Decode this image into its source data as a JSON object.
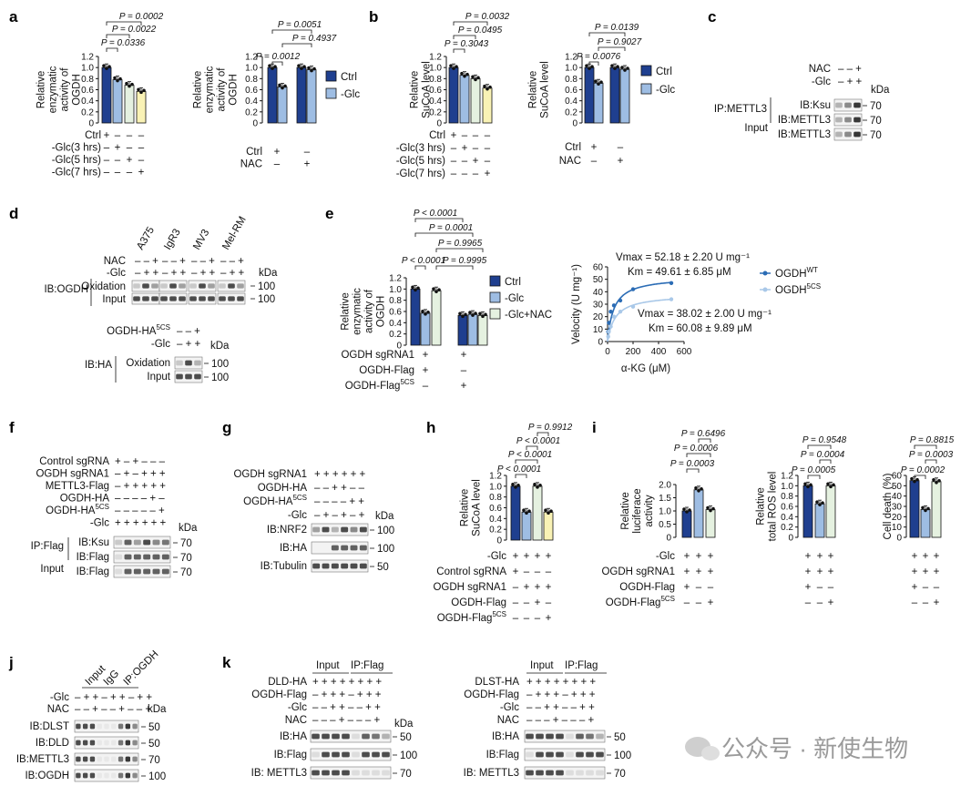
{
  "panel_labels": [
    "a",
    "b",
    "c",
    "d",
    "e",
    "f",
    "g",
    "h",
    "i",
    "j",
    "k"
  ],
  "legend": {
    "ctrl": "Ctrl",
    "glc": "-Glc",
    "glc_nac": "-Glc+NAC",
    "wt": "OGDH",
    "wt_sup": "WT",
    "mut": "OGDH",
    "mut_sup": "5CS"
  },
  "chart_data": [
    {
      "panel": "a",
      "type": "bar",
      "ylabel": [
        "Relative",
        "enzymatic",
        "activity of",
        "OGDH"
      ],
      "ylim": [
        0,
        1.2
      ],
      "yticks": [
        "0",
        "0.2",
        "0.4",
        "0.6",
        "0.8",
        "1.0",
        "1.2"
      ],
      "values": [
        1.0,
        0.78,
        0.68,
        0.57
      ],
      "colors": [
        "#1f3f8f",
        "#9ebde3",
        "#e5f1e0",
        "#f9f2b5"
      ],
      "pvalues": [
        "P = 0.0002",
        "P = 0.0022",
        "P = 0.0336"
      ],
      "conditions": [
        {
          "label": "Ctrl",
          "signs": [
            "+",
            "–",
            "–",
            "–"
          ]
        },
        {
          "label": "-Glc(3 hrs)",
          "signs": [
            "–",
            "+",
            "–",
            "–"
          ]
        },
        {
          "label": "-Glc(5 hrs)",
          "signs": [
            "–",
            "–",
            "+",
            "–"
          ]
        },
        {
          "label": "-Glc(7 hrs)",
          "signs": [
            "–",
            "–",
            "–",
            "+"
          ]
        }
      ]
    },
    {
      "panel": "a2",
      "type": "bar",
      "ylabel": [
        "Relative",
        "enzymatic",
        "activity of",
        "OGDH"
      ],
      "ylim": [
        0,
        1.2
      ],
      "yticks": [
        "0",
        "0.2",
        "0.4",
        "0.6",
        "0.8",
        "1.0",
        "1.2"
      ],
      "values": [
        1.0,
        0.65,
        1.0,
        0.96
      ],
      "colors": [
        "#1f3f8f",
        "#9ebde3",
        "#1f3f8f",
        "#9ebde3"
      ],
      "pvalues": [
        "P = 0.0051",
        "P = 0.4937",
        "P = 0.0012"
      ],
      "conditions": [
        {
          "label": "Ctrl",
          "signs": [
            "+",
            "–"
          ]
        },
        {
          "label": "NAC",
          "signs": [
            "–",
            "+"
          ]
        }
      ]
    },
    {
      "panel": "b",
      "type": "bar",
      "ylabel": [
        "Relative",
        "SuCoA level"
      ],
      "ylim": [
        0,
        1.2
      ],
      "yticks": [
        "0",
        "0.2",
        "0.4",
        "0.6",
        "0.8",
        "1.0",
        "1.2"
      ],
      "values": [
        1.0,
        0.86,
        0.8,
        0.63
      ],
      "colors": [
        "#1f3f8f",
        "#9ebde3",
        "#e5f1e0",
        "#f9f2b5"
      ],
      "pvalues": [
        "P = 0.0032",
        "P = 0.0495",
        "P = 0.3043"
      ],
      "conditions": [
        {
          "label": "Ctrl",
          "signs": [
            "+",
            "–",
            "–",
            "–"
          ]
        },
        {
          "label": "-Glc(3 hrs)",
          "signs": [
            "–",
            "+",
            "–",
            "–"
          ]
        },
        {
          "label": "-Glc(5 hrs)",
          "signs": [
            "–",
            "–",
            "+",
            "–"
          ]
        },
        {
          "label": "-Glc(7 hrs)",
          "signs": [
            "–",
            "–",
            "–",
            "+"
          ]
        }
      ]
    },
    {
      "panel": "b2",
      "type": "bar",
      "ylabel": [
        "Relative",
        "SuCoA level"
      ],
      "ylim": [
        0,
        1.2
      ],
      "yticks": [
        "0",
        "0.2",
        "0.4",
        "0.6",
        "0.8",
        "1.0",
        "1.2"
      ],
      "values": [
        1.0,
        0.72,
        1.0,
        0.97
      ],
      "colors": [
        "#1f3f8f",
        "#9ebde3",
        "#1f3f8f",
        "#9ebde3"
      ],
      "pvalues": [
        "P = 0.0139",
        "P = 0.9027",
        "P = 0.0076"
      ],
      "conditions": [
        {
          "label": "Ctrl",
          "signs": [
            "+",
            "–"
          ]
        },
        {
          "label": "NAC",
          "signs": [
            "–",
            "+"
          ]
        }
      ]
    },
    {
      "panel": "e",
      "type": "bar",
      "ylabel": [
        "Relative",
        "enzymatic",
        "activity of",
        "OGDH"
      ],
      "ylim": [
        0,
        1.2
      ],
      "yticks": [
        "0",
        "0.2",
        "0.4",
        "0.6",
        "0.8",
        "1.0",
        "1.2"
      ],
      "values": [
        1.0,
        0.57,
        0.97,
        0.53,
        0.55,
        0.53
      ],
      "colors": [
        "#1f3f8f",
        "#9ebde3",
        "#e5f1e0",
        "#1f3f8f",
        "#9ebde3",
        "#e5f1e0"
      ],
      "pvalues": [
        "P < 0.0001",
        "P = 0.0001",
        "P = 0.9965",
        "P < 0.0001",
        "P = 0.9995"
      ],
      "conditions": [
        {
          "label": "OGDH sgRNA1",
          "signs": [
            "+",
            "+"
          ]
        },
        {
          "label": "OGDH-Flag",
          "signs": [
            "+",
            "–"
          ]
        },
        {
          "label": "OGDH5CS-Flag",
          "signs": [
            "–",
            "+"
          ]
        }
      ]
    },
    {
      "panel": "e2",
      "type": "line",
      "xlabel": "α-KG (μM)",
      "ylabel": "Velocity (U mg⁻¹)",
      "xlim": [
        0,
        600
      ],
      "ylim": [
        0,
        60
      ],
      "xticks": [
        "0",
        "200",
        "400",
        "600"
      ],
      "yticks": [
        "0",
        "10",
        "20",
        "30",
        "40",
        "50",
        "60"
      ],
      "annotations": [
        "Vmax = 52.18 ± 2.20 U mg⁻¹",
        "Km = 49.61 ± 6.85 μM",
        "Vmax = 38.02 ± 2.00 U mg⁻¹",
        "Km = 60.08 ± 9.89 μM"
      ],
      "series": [
        {
          "name": "OGDHWT",
          "vmax": 52.18,
          "km": 49.61,
          "x": [
            5,
            10,
            25,
            50,
            100,
            200,
            500
          ],
          "y": [
            8,
            15,
            24,
            29,
            33,
            42,
            47
          ],
          "color": "#2b6cb5"
        },
        {
          "name": "OGDH5CS",
          "vmax": 38.02,
          "km": 60.08,
          "x": [
            5,
            10,
            25,
            50,
            100,
            200,
            500
          ],
          "y": [
            4,
            8,
            12,
            20,
            24,
            28,
            34
          ],
          "color": "#a9c8e8"
        }
      ]
    },
    {
      "panel": "h",
      "type": "bar",
      "ylabel": [
        "Relative",
        "SuCoA level"
      ],
      "ylim": [
        0,
        1.2
      ],
      "yticks": [
        "0",
        "0.2",
        "0.4",
        "0.6",
        "0.8",
        "1.0",
        "1.2"
      ],
      "values": [
        1.0,
        0.52,
        1.0,
        0.52
      ],
      "colors": [
        "#1f3f8f",
        "#9ebde3",
        "#e5f1e0",
        "#f9f2b5"
      ],
      "pvalues": [
        "P = 0.9912",
        "P < 0.0001",
        "P < 0.0001",
        "P < 0.0001"
      ],
      "conditions": [
        {
          "label": "-Glc",
          "signs": [
            "+",
            "+",
            "+",
            "+"
          ]
        },
        {
          "label": "Control sgRNA",
          "signs": [
            "+",
            "–",
            "–",
            "–"
          ]
        },
        {
          "label": "OGDH sgRNA1",
          "signs": [
            "–",
            "+",
            "+",
            "+"
          ]
        },
        {
          "label": "OGDH-Flag",
          "signs": [
            "–",
            "–",
            "+",
            "–"
          ]
        },
        {
          "label": "OGDH5CS-Flag",
          "signs": [
            "–",
            "–",
            "–",
            "+"
          ]
        }
      ]
    },
    {
      "panel": "i1",
      "type": "bar",
      "ylabel": [
        "Relative",
        "luciferace",
        "activity"
      ],
      "ylim": [
        0,
        2.0
      ],
      "yticks": [
        "0",
        "0.5",
        "1.0",
        "1.5",
        "2.0"
      ],
      "values": [
        1.0,
        1.8,
        1.05
      ],
      "colors": [
        "#1f3f8f",
        "#9ebde3",
        "#e5f1e0"
      ],
      "pvalues": [
        "P = 0.6496",
        "P = 0.0006",
        "P = 0.0003"
      ],
      "conditions": [
        {
          "label": "-Glc",
          "signs": [
            "+",
            "+",
            "+"
          ]
        },
        {
          "label": "OGDH sgRNA1",
          "signs": [
            "+",
            "+",
            "+"
          ]
        },
        {
          "label": "OGDH-Flag",
          "signs": [
            "+",
            "–",
            "–"
          ]
        },
        {
          "label": "OGDH5CS-Flag",
          "signs": [
            "–",
            "–",
            "+"
          ]
        }
      ]
    },
    {
      "panel": "i2",
      "type": "bar",
      "ylabel": [
        "Relative",
        "total ROS level"
      ],
      "ylim": [
        0,
        1.2
      ],
      "yticks": [
        "0",
        "0.2",
        "0.4",
        "0.6",
        "0.8",
        "1.0",
        "1.2"
      ],
      "values": [
        1.0,
        0.65,
        1.0
      ],
      "colors": [
        "#1f3f8f",
        "#9ebde3",
        "#e5f1e0"
      ],
      "pvalues": [
        "P = 0.9548",
        "P = 0.0004",
        "P = 0.0005"
      ],
      "conditions": [
        {
          "signs": [
            "+",
            "+",
            "+"
          ]
        },
        {
          "signs": [
            "+",
            "+",
            "+"
          ]
        },
        {
          "signs": [
            "+",
            "–",
            "–"
          ]
        },
        {
          "signs": [
            "–",
            "–",
            "+"
          ]
        }
      ]
    },
    {
      "panel": "i3",
      "type": "bar",
      "ylabel": [
        "Cell death (%)"
      ],
      "ylim": [
        0,
        60
      ],
      "yticks": [
        "0",
        "10",
        "20",
        "30",
        "40",
        "50",
        "60"
      ],
      "values": [
        55,
        27,
        54
      ],
      "colors": [
        "#1f3f8f",
        "#9ebde3",
        "#e5f1e0"
      ],
      "pvalues": [
        "P = 0.8815",
        "P = 0.0003",
        "P = 0.0002"
      ],
      "conditions": [
        {
          "signs": [
            "+",
            "+",
            "+"
          ]
        },
        {
          "signs": [
            "+",
            "+",
            "+"
          ]
        },
        {
          "signs": [
            "+",
            "–",
            "–"
          ]
        },
        {
          "signs": [
            "–",
            "–",
            "+"
          ]
        }
      ]
    }
  ],
  "blots": {
    "c": {
      "rows": [
        {
          "label": "NAC",
          "signs": "– – +"
        },
        {
          "label": "-Glc",
          "signs": "– + +"
        }
      ],
      "kda": "kDa",
      "ip": "IP:METTL3",
      "input": "Input",
      "bands": [
        "IB:Ksu",
        "IB:METTL3",
        "IB:METTL3"
      ],
      "sizes": [
        "70",
        "70",
        "70"
      ]
    },
    "d": {
      "cells": [
        "A375",
        "IgR3",
        "MV3",
        "Mel-RM"
      ],
      "rows": [
        {
          "label": "NAC",
          "signs": "– – +"
        },
        {
          "label": "-Glc",
          "signs": "– + +"
        }
      ],
      "kda": "kDa",
      "ib": "IB:OGDH",
      "bands": [
        "Oxidation",
        "Input"
      ],
      "sizes": [
        "100",
        "100"
      ],
      "rows2": [
        {
          "label": "OGDH5CS-HA",
          "signs": "– – +"
        },
        {
          "label": "-Glc",
          "signs": "– + +"
        }
      ],
      "ib2": "IB:HA",
      "sizes2": [
        "100",
        "100"
      ]
    },
    "f": {
      "rows": [
        {
          "label": "Control sgRNA",
          "signs": "+ – + – – –"
        },
        {
          "label": "OGDH sgRNA1",
          "signs": "– + – + + +"
        },
        {
          "label": "METTL3-Flag",
          "signs": "– + + + + +"
        },
        {
          "label": "OGDH-HA",
          "signs": "– – – – + –"
        },
        {
          "label": "OGDH5CS-HA",
          "signs": "– – – – – +"
        },
        {
          "label": "-Glc",
          "signs": "+ + + + + +"
        }
      ],
      "kda": "kDa",
      "ip": "IP:Flag",
      "input": "Input",
      "bands": [
        "IB:Ksu",
        "IB:Flag",
        "IB:Flag"
      ],
      "sizes": [
        "70",
        "70",
        "70"
      ]
    },
    "g": {
      "rows": [
        {
          "label": "OGDH sgRNA1",
          "signs": "+ + + + + +"
        },
        {
          "label": "OGDH-HA",
          "signs": "– – + + – –"
        },
        {
          "label": "OGDH5CS-HA",
          "signs": "– – – – + +"
        },
        {
          "label": "-Glc",
          "signs": "– + – + – +"
        }
      ],
      "kda": "kDa",
      "bands": [
        "IB:NRF2",
        "IB:HA",
        "IB:Tubulin"
      ],
      "sizes": [
        "100",
        "100",
        "50"
      ]
    },
    "j": {
      "cols": [
        "Input",
        "IgG",
        "IP:OGDH"
      ],
      "rows": [
        {
          "label": "-Glc",
          "signs": "– + + – + + – + +"
        },
        {
          "label": "NAC",
          "signs": "– – + – – + – – +"
        }
      ],
      "kda": "kDa",
      "bands": [
        "IB:DLST",
        "IB:DLD",
        "IB:METTL3",
        "IB:OGDH"
      ],
      "sizes": [
        "50",
        "50",
        "70",
        "100"
      ]
    },
    "k1": {
      "cols": [
        "Input",
        "IP:Flag"
      ],
      "rows": [
        {
          "label": "DLD-HA",
          "signs": "+ + + + + + + +"
        },
        {
          "label": "OGDH-Flag",
          "signs": "– + + + – + + +"
        },
        {
          "label": "-Glc",
          "signs": "– – + + – – + +"
        },
        {
          "label": "NAC",
          "signs": "– – – + – – – +"
        }
      ],
      "kda": "kDa",
      "bands": [
        "IB:HA",
        "IB:Flag",
        "IB: METTL3"
      ],
      "sizes": [
        "50",
        "100",
        "70"
      ]
    },
    "k2": {
      "cols": [
        "Input",
        "IP:Flag"
      ],
      "rows": [
        {
          "label": "DLST-HA",
          "signs": "+ + + + + + + +"
        },
        {
          "label": "OGDH-Flag",
          "signs": "– + + + – + + +"
        },
        {
          "label": "-Glc",
          "signs": "– – + + – – + +"
        },
        {
          "label": "NAC",
          "signs": "– – – + – – – +"
        }
      ],
      "bands": [
        "IB:HA",
        "IB:Flag",
        "IB: METTL3"
      ],
      "sizes": [
        "50",
        "100",
        "70"
      ]
    }
  },
  "watermark": "公众号 · 新使生物"
}
